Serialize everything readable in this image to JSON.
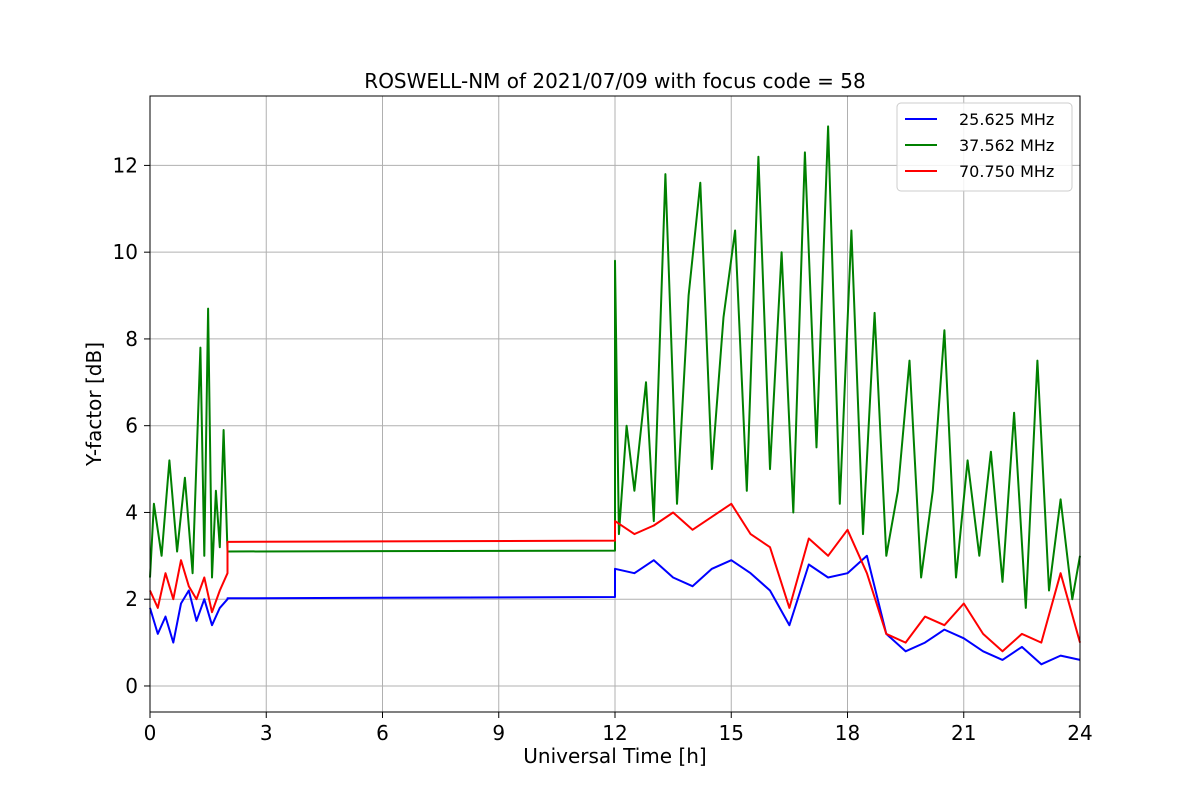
{
  "chart_data": {
    "type": "line",
    "title": "ROSWELL-NM of 2021/07/09 with focus code = 58",
    "xlabel": "Universal Time [h]",
    "ylabel": "Y-factor [dB]",
    "xlim": [
      0,
      24
    ],
    "ylim": [
      -0.6,
      13.6
    ],
    "xticks": [
      0,
      3,
      6,
      9,
      12,
      15,
      18,
      21,
      24
    ],
    "yticks": [
      0,
      2,
      4,
      6,
      8,
      10,
      12
    ],
    "grid": true,
    "legend_position": "top-right",
    "series": [
      {
        "name": "25.625 MHz",
        "color": "#0000ff",
        "x": [
          0,
          0.2,
          0.4,
          0.6,
          0.8,
          1.0,
          1.2,
          1.4,
          1.6,
          1.8,
          2.0,
          2.0,
          12.0,
          12.0,
          12.5,
          13.0,
          13.5,
          14.0,
          14.5,
          15.0,
          15.5,
          16.0,
          16.5,
          17.0,
          17.5,
          18.0,
          18.5,
          19.0,
          19.5,
          20.0,
          20.5,
          21.0,
          21.5,
          22.0,
          22.5,
          23.0,
          23.5,
          24.0
        ],
        "y": [
          1.8,
          1.2,
          1.6,
          1.0,
          1.9,
          2.2,
          1.5,
          2.0,
          1.4,
          1.8,
          2.0,
          2.02,
          2.05,
          2.7,
          2.6,
          2.9,
          2.5,
          2.3,
          2.7,
          2.9,
          2.6,
          2.2,
          1.4,
          2.8,
          2.5,
          2.6,
          3.0,
          1.2,
          0.8,
          1.0,
          1.3,
          1.1,
          0.8,
          0.6,
          0.9,
          0.5,
          0.7,
          0.6
        ]
      },
      {
        "name": "37.562 MHz",
        "color": "#008000",
        "x": [
          0,
          0.1,
          0.3,
          0.5,
          0.7,
          0.9,
          1.1,
          1.3,
          1.4,
          1.5,
          1.6,
          1.7,
          1.8,
          1.9,
          2.0,
          2.0,
          12.0,
          12.0,
          12.1,
          12.3,
          12.5,
          12.8,
          13.0,
          13.3,
          13.6,
          13.9,
          14.2,
          14.5,
          14.8,
          15.1,
          15.4,
          15.7,
          16.0,
          16.3,
          16.6,
          16.9,
          17.2,
          17.5,
          17.8,
          18.1,
          18.4,
          18.7,
          19.0,
          19.3,
          19.6,
          19.9,
          20.2,
          20.5,
          20.8,
          21.1,
          21.4,
          21.7,
          22.0,
          22.3,
          22.6,
          22.9,
          23.2,
          23.5,
          23.8,
          24.0
        ],
        "y": [
          2.5,
          4.2,
          3.0,
          5.2,
          3.1,
          4.8,
          2.6,
          7.8,
          3.0,
          8.7,
          2.5,
          4.5,
          3.2,
          5.9,
          3.1,
          3.1,
          3.12,
          9.8,
          3.5,
          6.0,
          4.5,
          7.0,
          3.8,
          11.8,
          4.2,
          9.0,
          11.6,
          5.0,
          8.5,
          10.5,
          4.5,
          12.2,
          5.0,
          10.0,
          4.0,
          12.3,
          5.5,
          12.9,
          4.2,
          10.5,
          3.5,
          8.6,
          3.0,
          4.5,
          7.5,
          2.5,
          4.5,
          8.2,
          2.5,
          5.2,
          3.0,
          5.4,
          2.4,
          6.3,
          1.8,
          7.5,
          2.2,
          4.3,
          2.0,
          3.0
        ]
      },
      {
        "name": "70.750 MHz",
        "color": "#ff0000",
        "x": [
          0,
          0.2,
          0.4,
          0.6,
          0.8,
          1.0,
          1.2,
          1.4,
          1.6,
          1.8,
          2.0,
          2.0,
          12.0,
          12.0,
          12.5,
          13.0,
          13.5,
          14.0,
          14.5,
          15.0,
          15.5,
          16.0,
          16.5,
          17.0,
          17.5,
          18.0,
          18.5,
          19.0,
          19.5,
          20.0,
          20.5,
          21.0,
          21.5,
          22.0,
          22.5,
          23.0,
          23.5,
          24.0
        ],
        "y": [
          2.2,
          1.8,
          2.6,
          2.0,
          2.9,
          2.3,
          2.0,
          2.5,
          1.7,
          2.2,
          2.6,
          3.32,
          3.35,
          3.8,
          3.5,
          3.7,
          4.0,
          3.6,
          3.9,
          4.2,
          3.5,
          3.2,
          1.8,
          3.4,
          3.0,
          3.6,
          2.6,
          1.2,
          1.0,
          1.6,
          1.4,
          1.9,
          1.2,
          0.8,
          1.2,
          1.0,
          2.6,
          1.0
        ]
      }
    ]
  }
}
